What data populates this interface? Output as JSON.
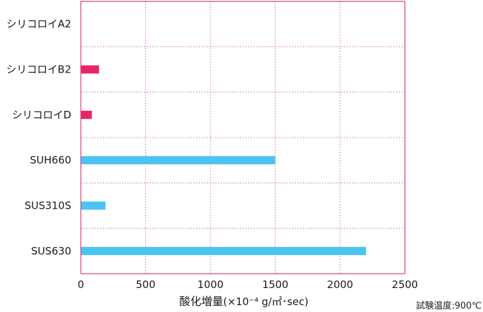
{
  "chart_data": {
    "type": "bar",
    "orientation": "horizontal",
    "categories": [
      "シリコロイA2",
      "シリコロイB2",
      "シリコロイD",
      "SUH660",
      "SUS310S",
      "SUS630"
    ],
    "values": [
      0,
      140,
      85,
      1500,
      190,
      2200
    ],
    "bar_colors": [
      "#e8256a",
      "#e8256a",
      "#e8256a",
      "#4cc4ef",
      "#4cc4ef",
      "#4cc4ef"
    ],
    "xlim": [
      0,
      2500
    ],
    "xticks": [
      0,
      500,
      1000,
      1500,
      2000,
      2500
    ],
    "xlabel_main": "酸化増量",
    "xlabel_unit": "(×10⁻⁴ g/㎡･sec)",
    "note": "試験温度:900℃",
    "grid": "dashed",
    "frame_color": "#d23f73",
    "grid_color": "#d98aa8"
  }
}
